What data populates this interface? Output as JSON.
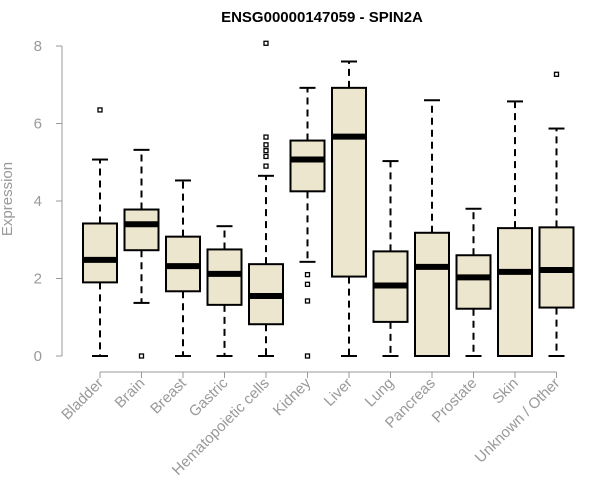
{
  "chart_data": {
    "type": "boxplot",
    "title": "ENSG00000147059 - SPIN2A",
    "xlabel": "",
    "ylabel": "Expression",
    "ylim": [
      0,
      8
    ],
    "yticks": [
      0,
      2,
      4,
      6,
      8
    ],
    "categories": [
      "Bladder",
      "Brain",
      "Breast",
      "Gastric",
      "Hematopoietic cells",
      "Kidney",
      "Liver",
      "Lung",
      "Pancreas",
      "Prostate",
      "Skin",
      "Unknown / Other"
    ],
    "boxes": [
      {
        "min": 0.0,
        "q1": 1.9,
        "median": 2.48,
        "q3": 3.42,
        "max": 5.07,
        "outliers": [
          6.35
        ]
      },
      {
        "min": 1.37,
        "q1": 2.73,
        "median": 3.4,
        "q3": 3.78,
        "max": 5.32,
        "outliers": [
          0.0
        ]
      },
      {
        "min": 0.0,
        "q1": 1.67,
        "median": 2.32,
        "q3": 3.08,
        "max": 4.53,
        "outliers": []
      },
      {
        "min": 0.0,
        "q1": 1.32,
        "median": 2.12,
        "q3": 2.75,
        "max": 3.35,
        "outliers": []
      },
      {
        "min": 0.0,
        "q1": 0.82,
        "median": 1.55,
        "q3": 2.37,
        "max": 4.65,
        "outliers": [
          4.9,
          5.15,
          5.3,
          5.45,
          5.65,
          8.07
        ]
      },
      {
        "min": 2.43,
        "q1": 4.25,
        "median": 5.07,
        "q3": 5.56,
        "max": 6.92,
        "outliers": [
          0.0,
          1.42,
          1.85,
          2.1
        ]
      },
      {
        "min": 0.0,
        "q1": 2.05,
        "median": 5.66,
        "q3": 6.92,
        "max": 7.6,
        "outliers": []
      },
      {
        "min": 0.0,
        "q1": 0.88,
        "median": 1.82,
        "q3": 2.7,
        "max": 5.03,
        "outliers": []
      },
      {
        "min": 0.0,
        "q1": 0.0,
        "median": 2.3,
        "q3": 3.18,
        "max": 6.6,
        "outliers": []
      },
      {
        "min": 0.0,
        "q1": 1.22,
        "median": 2.03,
        "q3": 2.6,
        "max": 3.8,
        "outliers": []
      },
      {
        "min": 0.0,
        "q1": 0.0,
        "median": 2.17,
        "q3": 3.3,
        "max": 6.57,
        "outliers": []
      },
      {
        "min": 0.0,
        "q1": 1.25,
        "median": 2.22,
        "q3": 3.32,
        "max": 5.87,
        "outliers": [
          7.27
        ]
      }
    ],
    "colors": {
      "box_fill": "#ede6cf",
      "stroke": "#000000",
      "axis": "#999999",
      "title": "#000000"
    }
  }
}
